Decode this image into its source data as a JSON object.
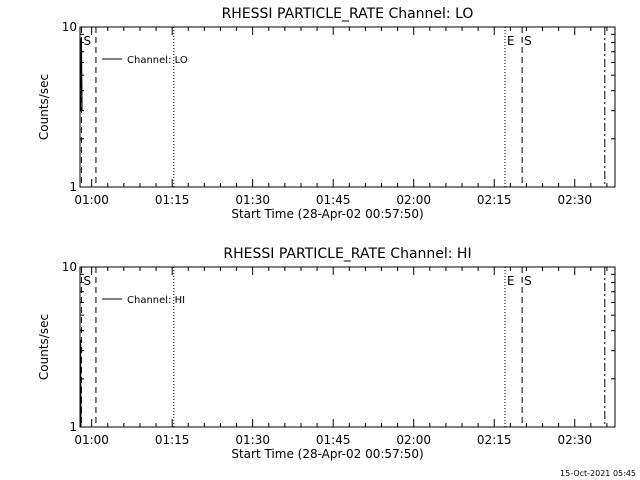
{
  "footer": {
    "timestamp": "15-Oct-2021 05:45"
  },
  "colors": {
    "foreground": "#000000",
    "background": "#ffffff"
  },
  "chart_data": [
    {
      "type": "line",
      "title": "RHESSI PARTICLE_RATE Channel: LO",
      "xlabel": "Start Time (28-Apr-02 00:57:50)",
      "ylabel": "Counts/sec",
      "x_start": "00:57:50",
      "xlim_min": [
        57.83,
        157.5
      ],
      "ylim": [
        1,
        10
      ],
      "y_scale": "log",
      "x_ticks": [
        {
          "label": "01:00",
          "min": 60
        },
        {
          "label": "01:15",
          "min": 75
        },
        {
          "label": "01:30",
          "min": 90
        },
        {
          "label": "01:45",
          "min": 105
        },
        {
          "label": "02:00",
          "min": 120
        },
        {
          "label": "02:15",
          "min": 135
        },
        {
          "label": "02:30",
          "min": 150
        }
      ],
      "y_ticks": [
        {
          "label": "1",
          "value": 1
        },
        {
          "label": "10",
          "value": 10
        }
      ],
      "legend": {
        "entry": "Channel: LO",
        "placement": "top-left"
      },
      "series": [
        {
          "name": "Channel: LO",
          "points": [
            {
              "t": 57.9,
              "y": 3.0
            },
            {
              "t": 58.0,
              "y": 8.5
            },
            {
              "t": 58.1,
              "y": 8.3
            },
            {
              "t": 58.2,
              "y": 3.0
            }
          ]
        }
      ],
      "markers": [
        {
          "text": "S",
          "t": 58.1,
          "line": "dashed"
        },
        {
          "text": "",
          "t": 60.8,
          "line": "dashed"
        },
        {
          "text": "",
          "t": 75.3,
          "line": "dotted"
        },
        {
          "text": "E",
          "t": 137.0,
          "line": "dotted"
        },
        {
          "text": "S",
          "t": 140.2,
          "line": "dashed"
        },
        {
          "text": "",
          "t": 155.6,
          "line": "dashdot"
        }
      ]
    },
    {
      "type": "line",
      "title": "RHESSI PARTICLE_RATE Channel: HI",
      "xlabel": "Start Time (28-Apr-02 00:57:50)",
      "ylabel": "Counts/sec",
      "x_start": "00:57:50",
      "xlim_min": [
        57.83,
        157.5
      ],
      "ylim": [
        1,
        10
      ],
      "y_scale": "log",
      "x_ticks": [
        {
          "label": "01:00",
          "min": 60
        },
        {
          "label": "01:15",
          "min": 75
        },
        {
          "label": "01:30",
          "min": 90
        },
        {
          "label": "01:45",
          "min": 105
        },
        {
          "label": "02:00",
          "min": 120
        },
        {
          "label": "02:15",
          "min": 135
        },
        {
          "label": "02:30",
          "min": 150
        }
      ],
      "y_ticks": [
        {
          "label": "1",
          "value": 1
        },
        {
          "label": "10",
          "value": 10
        }
      ],
      "legend": {
        "entry": "Channel: HI",
        "placement": "top-left"
      },
      "series": [
        {
          "name": "Channel: HI",
          "points": [
            {
              "t": 57.9,
              "y": 1.0
            },
            {
              "t": 57.95,
              "y": 3.5
            },
            {
              "t": 58.0,
              "y": 1.0
            }
          ]
        }
      ],
      "markers": [
        {
          "text": "S",
          "t": 58.1,
          "line": "dashed"
        },
        {
          "text": "",
          "t": 60.8,
          "line": "dashed"
        },
        {
          "text": "",
          "t": 75.3,
          "line": "dotted"
        },
        {
          "text": "E",
          "t": 137.0,
          "line": "dotted"
        },
        {
          "text": "S",
          "t": 140.2,
          "line": "dashed"
        },
        {
          "text": "",
          "t": 155.6,
          "line": "dashdot"
        }
      ]
    }
  ]
}
